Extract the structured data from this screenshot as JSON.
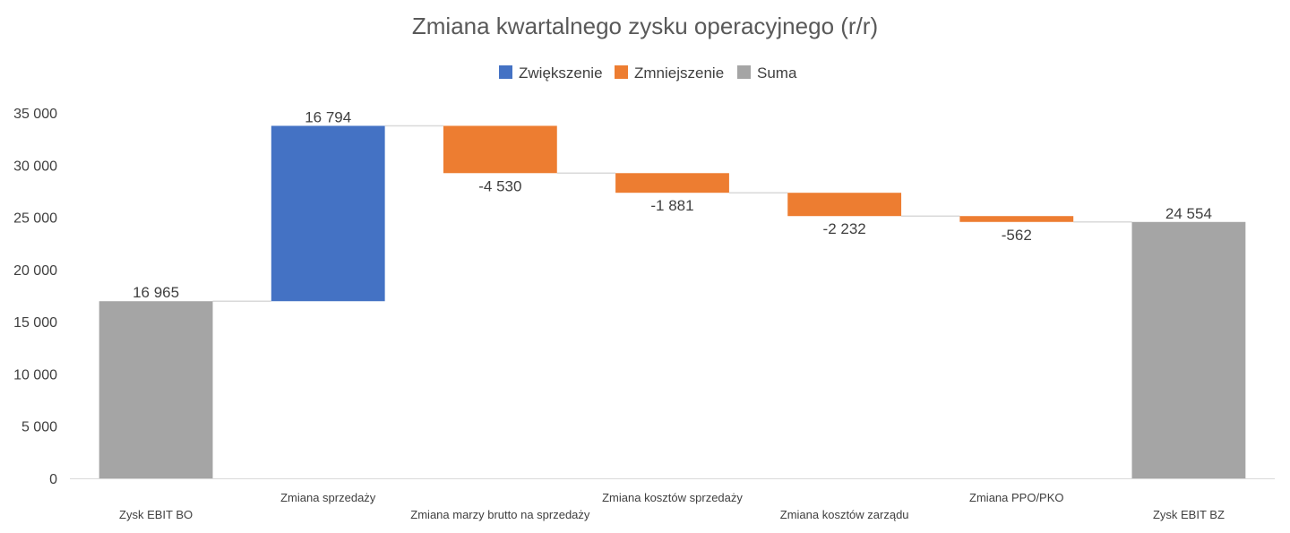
{
  "chart_data": {
    "type": "waterfall",
    "title": "Zmiana kwartalnego zysku operacyjnego (r/r)",
    "xlabel": "",
    "ylabel": "",
    "ylim": [
      0,
      35000
    ],
    "yticks": [
      "0",
      "5 000",
      "10 000",
      "15 000",
      "20 000",
      "25 000",
      "30 000",
      "35 000"
    ],
    "grid": false,
    "legend_position": "top",
    "legend": [
      {
        "key": "increase",
        "label": "Zwiększenie",
        "color": "#4472C4"
      },
      {
        "key": "decrease",
        "label": "Zmniejszenie",
        "color": "#ED7D31"
      },
      {
        "key": "total",
        "label": "Suma",
        "color": "#A5A5A5"
      }
    ],
    "categories": [
      "Zysk EBIT BO",
      "Zmiana sprzedaży",
      "Zmiana marzy brutto na sprzedaży",
      "Zmiana kosztów sprzedaży",
      "Zmiana kosztów zarządu",
      "Zmiana PPO/PKO",
      "Zysk EBIT BZ"
    ],
    "values": [
      16965,
      16794,
      -4530,
      -1881,
      -2232,
      -562,
      24554
    ],
    "kinds": [
      "total",
      "increase",
      "decrease",
      "decrease",
      "decrease",
      "decrease",
      "total"
    ],
    "data_labels": [
      "16 965",
      "16 794",
      "-4 530",
      "-1 881",
      "-2 232",
      "-562",
      "24 554"
    ]
  }
}
